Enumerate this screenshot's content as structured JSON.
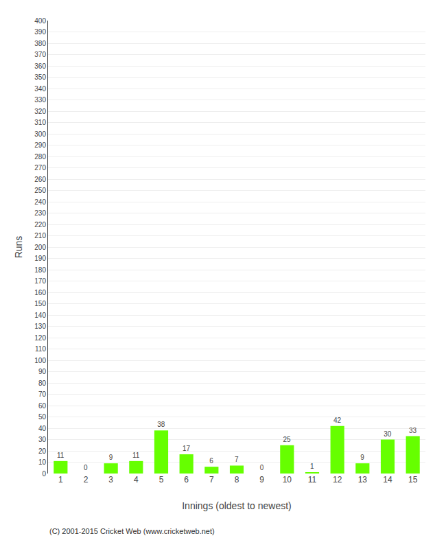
{
  "chart_data": {
    "type": "bar",
    "xlabel": "Innings (oldest to newest)",
    "ylabel": "Runs",
    "categories": [
      "1",
      "2",
      "3",
      "4",
      "5",
      "6",
      "7",
      "8",
      "9",
      "10",
      "11",
      "12",
      "13",
      "14",
      "15"
    ],
    "values": [
      11,
      0,
      9,
      11,
      38,
      17,
      6,
      7,
      0,
      25,
      1,
      42,
      9,
      30,
      33
    ],
    "color": "#66ff00",
    "data_labels": true,
    "ylim": [
      0,
      400
    ],
    "yticks": [
      0,
      10,
      20,
      30,
      40,
      50,
      60,
      70,
      80,
      90,
      100,
      110,
      120,
      130,
      140,
      150,
      160,
      170,
      180,
      190,
      200,
      210,
      220,
      230,
      240,
      250,
      260,
      270,
      280,
      290,
      300,
      310,
      320,
      330,
      340,
      350,
      360,
      370,
      380,
      390,
      400
    ],
    "grid": true,
    "annotations": [
      "(C) 2001-2015 Cricket Web (www.cricketweb.net)"
    ]
  }
}
